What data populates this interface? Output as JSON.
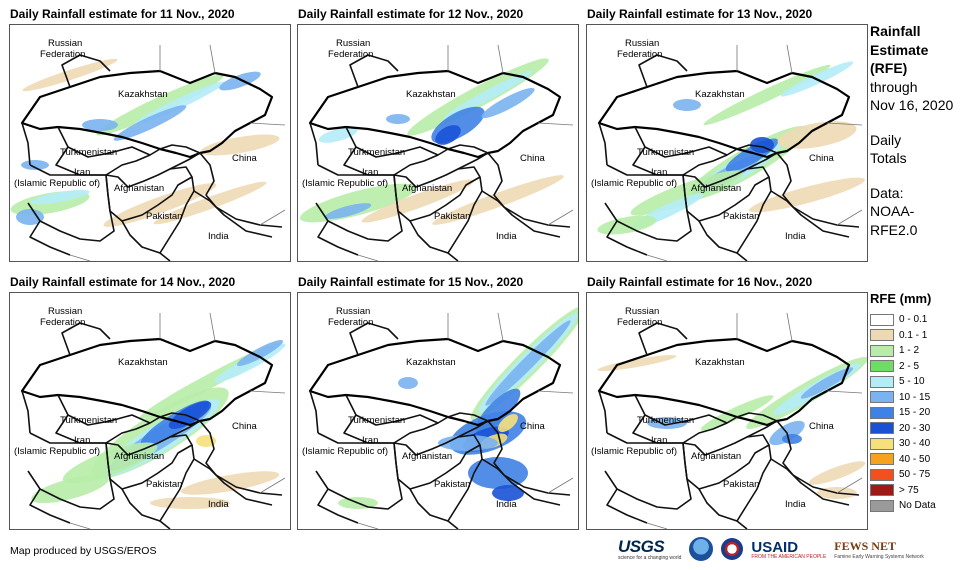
{
  "panels": [
    {
      "title": "Daily Rainfall estimate for 11 Nov., 2020"
    },
    {
      "title": "Daily Rainfall estimate for 12 Nov., 2020"
    },
    {
      "title": "Daily Rainfall estimate for 13 Nov., 2020"
    },
    {
      "title": "Daily Rainfall estimate for 14 Nov., 2020"
    },
    {
      "title": "Daily Rainfall estimate for 15 Nov., 2020"
    },
    {
      "title": "Daily Rainfall estimate for 16 Nov., 2020"
    }
  ],
  "map_labels": {
    "russia_1": "Russian",
    "russia_2": "Federation",
    "kazakhstan": "Kazakhstan",
    "turkmenistan": "Turkmenistan",
    "iran_1": "Iran",
    "iran_2": "(Islamic Republic of)",
    "afghanistan": "Afghanistan",
    "pakistan": "Pakistan",
    "china": "China",
    "india": "India"
  },
  "side_text": {
    "line1": "Rainfall",
    "line2": "Estimate",
    "line3": "(RFE)",
    "line4": "through",
    "line5": "Nov 16, 2020",
    "line6": "Daily",
    "line7": "Totals",
    "line8": "Data:",
    "line9": "NOAA-",
    "line10": "RFE2.0"
  },
  "legend": {
    "title": "RFE (mm)",
    "items": [
      {
        "label": "0 - 0.1",
        "color": "#ffffff"
      },
      {
        "label": "0.1 - 1",
        "color": "#eed9b5"
      },
      {
        "label": "1 - 2",
        "color": "#b7eda8"
      },
      {
        "label": "2 - 5",
        "color": "#6fdc66"
      },
      {
        "label": "5 - 10",
        "color": "#b4ecf7"
      },
      {
        "label": "10 - 15",
        "color": "#7ab3ef"
      },
      {
        "label": "15 - 20",
        "color": "#3f82e6"
      },
      {
        "label": "20 - 30",
        "color": "#1a52d6"
      },
      {
        "label": "30 - 40",
        "color": "#f6e07a"
      },
      {
        "label": "40 - 50",
        "color": "#f7a21c"
      },
      {
        "label": "50 - 75",
        "color": "#f2511d"
      },
      {
        "label": "> 75",
        "color": "#9e1a14"
      },
      {
        "label": "No Data",
        "color": "#9a9a9a"
      }
    ]
  },
  "credit": "Map produced by USGS/EROS",
  "logos": {
    "usgs": "USGS",
    "usgs_tagline": "science for a changing world",
    "usaid": "USAID",
    "usaid_tagline": "FROM THE AMERICAN PEOPLE",
    "fews": "FEWS NET",
    "fews_tagline": "Famine Early Warning Systems Network"
  }
}
